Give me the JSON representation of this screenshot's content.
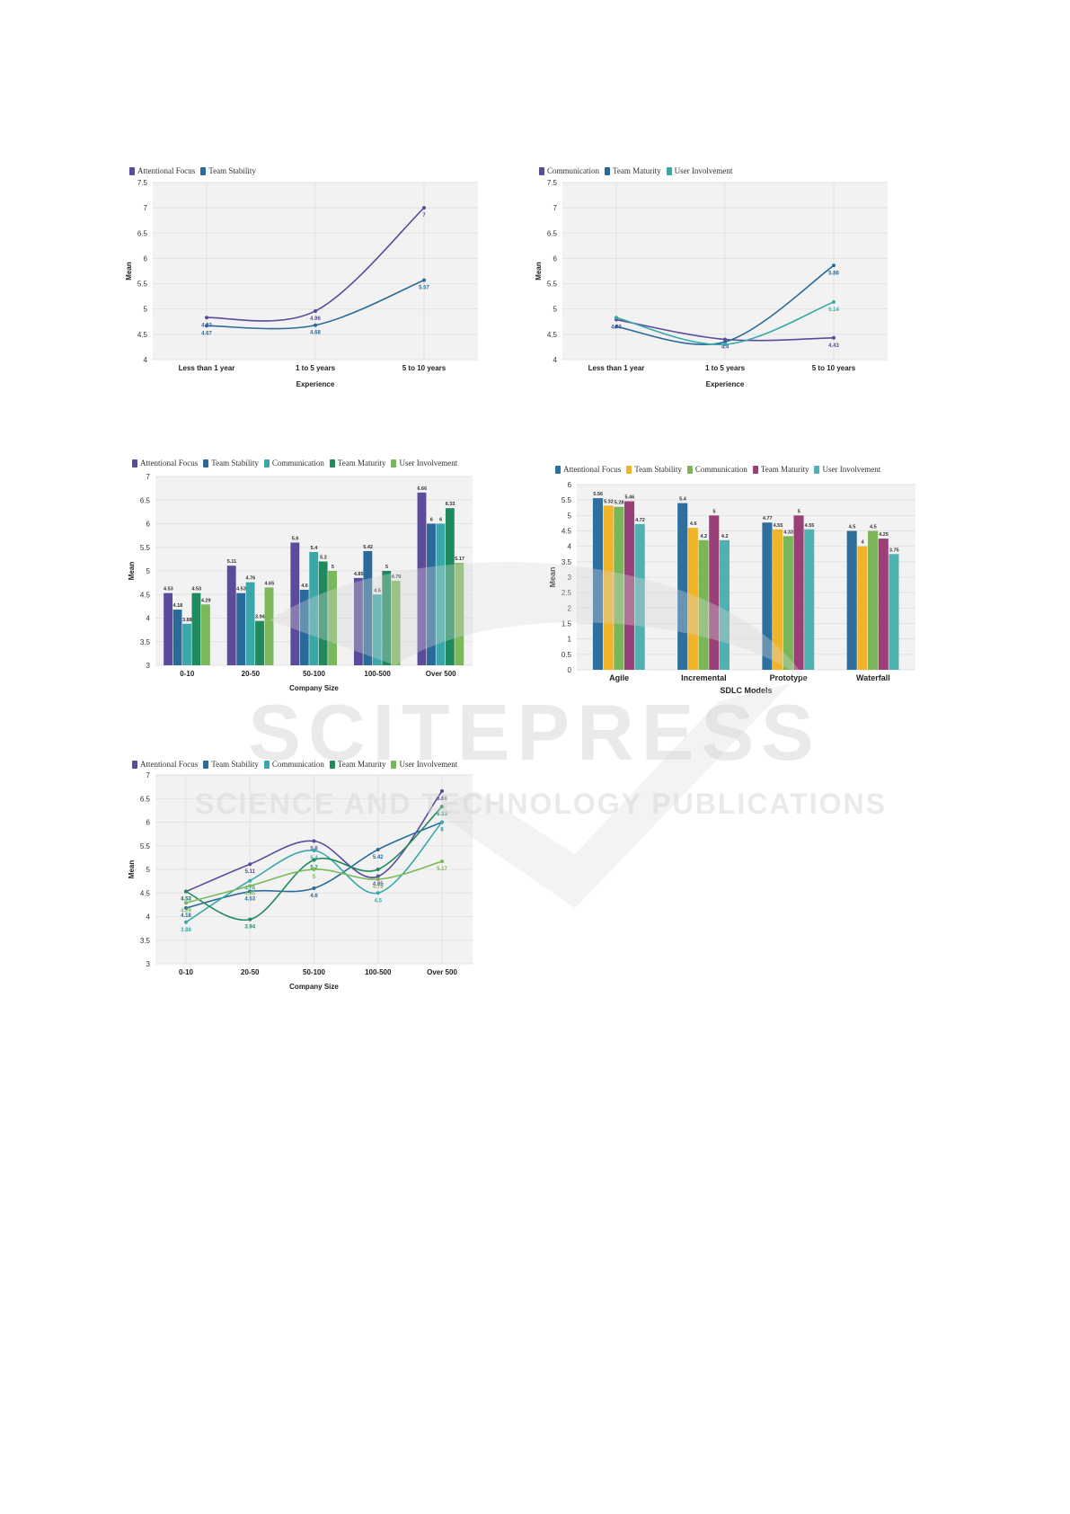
{
  "colors": {
    "attentional_focus": "#5c4a9b",
    "team_stability": "#2a6a9a",
    "communication": "#3aa8a8",
    "team_maturity": "#1f8a5e",
    "user_involvement": "#7ab85a",
    "sdlc_attentional": "#2e6f9e",
    "sdlc_stability": "#f0b42a",
    "sdlc_communication": "#7bb55a",
    "sdlc_maturity": "#9a3f78",
    "sdlc_involvement": "#4fb1b1",
    "watermark": "#d8d8d8"
  },
  "watermark": {
    "line1": "SCITEPRESS",
    "line2": "SCIENCE AND TECHNOLOGY PUBLICATIONS"
  },
  "chart_data": [
    {
      "id": "exp1",
      "type": "line",
      "categories": [
        "Less than 1 year",
        "1 to 5 years",
        "5 to 10 years"
      ],
      "series": [
        {
          "name": "Attentional Focus",
          "values": [
            4.83,
            4.96,
            7
          ]
        },
        {
          "name": "Team Stability",
          "values": [
            4.67,
            4.68,
            5.57
          ]
        }
      ],
      "xlabel": "Experience",
      "ylabel": "Mean",
      "ylim": [
        4,
        7.5
      ],
      "yticks": [
        "4",
        "4.5",
        "5",
        "5.5",
        "6",
        "6.5",
        "7",
        "7.5"
      ],
      "grid": true,
      "legend": "top-left"
    },
    {
      "id": "exp2",
      "type": "line",
      "categories": [
        "Less than 1 year",
        "1 to 5 years",
        "5 to 10 years"
      ],
      "series": [
        {
          "name": "Communication",
          "values": [
            4.79,
            4.4,
            4.43
          ]
        },
        {
          "name": "Team Maturity",
          "values": [
            4.65,
            4.35,
            5.86
          ]
        },
        {
          "name": "User Involvement",
          "values": [
            4.83,
            4.3,
            5.14
          ]
        }
      ],
      "labels": [
        [
          "4.79",
          "4.4",
          "4.43"
        ],
        [
          "",
          "",
          "5.86"
        ],
        [
          "",
          "",
          "5.14"
        ]
      ],
      "xlabel": "Experience",
      "ylabel": "Mean",
      "ylim": [
        4,
        7.5
      ],
      "yticks": [
        "4",
        "4.5",
        "5",
        "5.5",
        "6",
        "6.5",
        "7",
        "7.5"
      ],
      "grid": true,
      "legend": "top-left"
    },
    {
      "id": "size_bar",
      "type": "bar",
      "categories": [
        "0-10",
        "20-50",
        "50-100",
        "100-500",
        "Over 500"
      ],
      "series": [
        {
          "name": "Attentional Focus",
          "values": [
            4.53,
            5.11,
            5.6,
            4.85,
            6.66
          ]
        },
        {
          "name": "Team Stability",
          "values": [
            4.18,
            4.53,
            4.6,
            5.42,
            6
          ]
        },
        {
          "name": "Communication",
          "values": [
            3.88,
            4.76,
            5.4,
            4.5,
            6
          ]
        },
        {
          "name": "Team Maturity",
          "values": [
            4.53,
            3.94,
            5.2,
            5,
            6.33
          ]
        },
        {
          "name": "User Involvement",
          "values": [
            4.29,
            4.65,
            5,
            4.79,
            5.17
          ]
        }
      ],
      "xlabel": "Company Size",
      "ylabel": "Mean",
      "ylim": [
        3,
        7
      ],
      "yticks": [
        "3",
        "3.5",
        "4",
        "4.5",
        "5",
        "5.5",
        "6",
        "6.5",
        "7"
      ],
      "grid": true,
      "legend": "top-left"
    },
    {
      "id": "sdlc_bar",
      "type": "bar",
      "categories": [
        "Agile",
        "Incremental",
        "Prototype",
        "Waterfall"
      ],
      "series": [
        {
          "name": "Attentional Focus",
          "values": [
            5.56,
            5.4,
            4.77,
            4.5
          ]
        },
        {
          "name": "Team Stability",
          "values": [
            5.32,
            4.6,
            4.55,
            4
          ]
        },
        {
          "name": "Communication",
          "values": [
            5.28,
            4.2,
            4.33,
            4.5
          ]
        },
        {
          "name": "Team Maturity",
          "values": [
            5.46,
            5,
            5,
            4.25
          ]
        },
        {
          "name": "User Involvement",
          "values": [
            4.72,
            4.2,
            4.55,
            3.75
          ]
        }
      ],
      "xlabel": "SDLC Models",
      "ylabel": "Mean",
      "ylim": [
        0,
        6
      ],
      "yticks": [
        "0",
        "0.5",
        "1",
        "1.5",
        "2",
        "2.5",
        "3",
        "3.5",
        "4",
        "4.5",
        "5",
        "5.5",
        "6"
      ],
      "grid": true,
      "legend": "top-left"
    },
    {
      "id": "size_line",
      "type": "line",
      "categories": [
        "0-10",
        "20-50",
        "50-100",
        "100-500",
        "Over 500"
      ],
      "series": [
        {
          "name": "Attentional Focus",
          "values": [
            4.53,
            5.11,
            5.6,
            4.85,
            6.66
          ]
        },
        {
          "name": "Team Stability",
          "values": [
            4.18,
            4.53,
            4.6,
            5.42,
            6
          ]
        },
        {
          "name": "Communication",
          "values": [
            3.88,
            4.76,
            5.4,
            4.5,
            6
          ]
        },
        {
          "name": "Team Maturity",
          "values": [
            4.53,
            3.94,
            5.2,
            5,
            6.33
          ]
        },
        {
          "name": "User Involvement",
          "values": [
            4.29,
            4.65,
            5,
            4.79,
            5.17
          ]
        }
      ],
      "xlabel": "Company Size",
      "ylabel": "Mean",
      "ylim": [
        3,
        7
      ],
      "yticks": [
        "3",
        "3.5",
        "4",
        "4.5",
        "5",
        "5.5",
        "6",
        "6.5",
        "7"
      ],
      "grid": true,
      "legend": "top-left"
    }
  ]
}
